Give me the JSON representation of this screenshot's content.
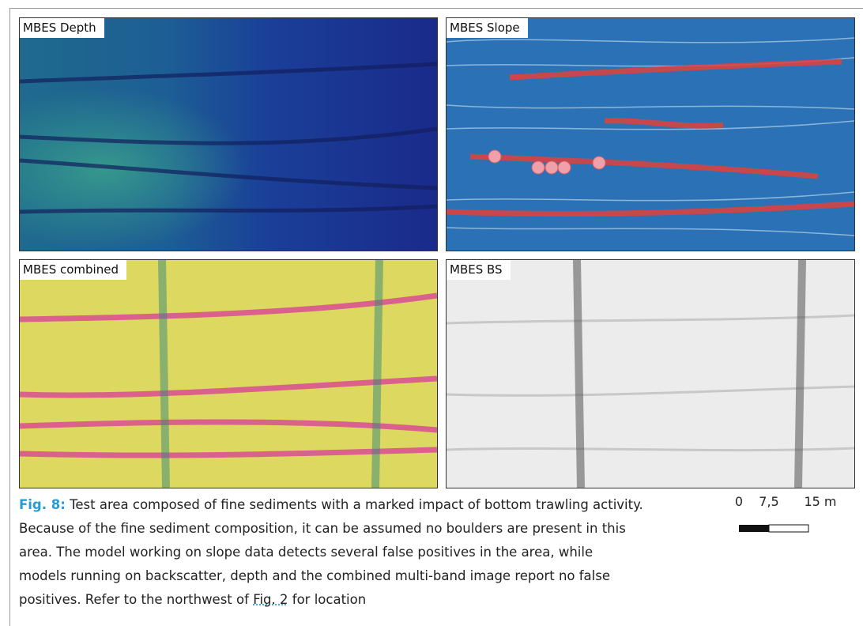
{
  "panels": [
    {
      "label": "MBES Depth"
    },
    {
      "label": "MBES Slope"
    },
    {
      "label": "MBES combined"
    },
    {
      "label": "MBES BS"
    }
  ],
  "scale_bar": {
    "labels": [
      "0",
      "7,5",
      "15 m"
    ]
  },
  "caption": {
    "label": "Fig. 8:",
    "text": "Test area composed of fine sediments with a marked impact of bottom trawling activity. Because of the fine sediment composition, it can be assumed no boulders are present in this area. The model working on slope data detects several false positives in the area, while models running on backscatter, depth and the combined multi-band image report no false positives. Refer to the northwest of",
    "link": "Fig. 2",
    "tail": "for location"
  }
}
